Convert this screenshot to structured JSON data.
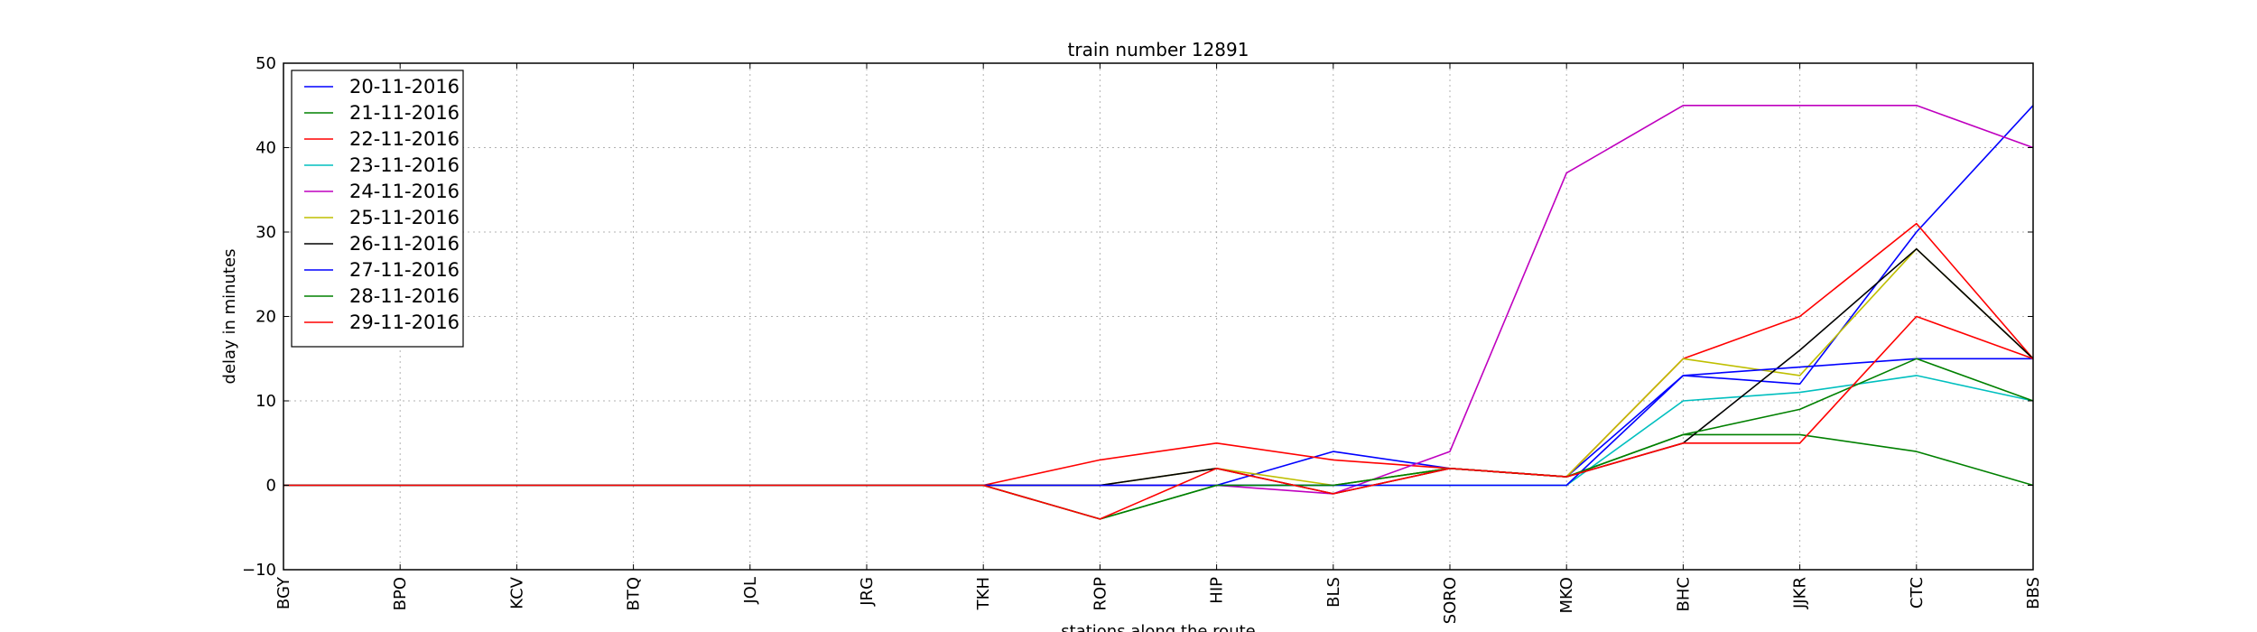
{
  "chart_data": {
    "type": "line",
    "title": "train number 12891",
    "xlabel": "stations along the route",
    "ylabel": "delay in minutes",
    "categories": [
      "BGY",
      "BPO",
      "KCV",
      "BTQ",
      "JOL",
      "JRG",
      "TKH",
      "ROP",
      "HIP",
      "BLS",
      "SORO",
      "MKO",
      "BHC",
      "JJKR",
      "CTC",
      "BBS"
    ],
    "yticks": [
      -10,
      0,
      10,
      20,
      30,
      40,
      50
    ],
    "ylim": [
      -10,
      50
    ],
    "grid": true,
    "legend_position": "top-left",
    "series": [
      {
        "name": "20-11-2016",
        "color": "#0000ff",
        "values": [
          0,
          0,
          0,
          0,
          0,
          0,
          0,
          0,
          0,
          4,
          2,
          1,
          13,
          12,
          30,
          45
        ]
      },
      {
        "name": "21-11-2016",
        "color": "#008000",
        "values": [
          0,
          0,
          0,
          0,
          0,
          0,
          0,
          -4,
          0,
          0,
          2,
          1,
          6,
          6,
          4,
          0
        ]
      },
      {
        "name": "22-11-2016",
        "color": "#ff0000",
        "values": [
          0,
          0,
          0,
          0,
          0,
          0,
          0,
          3,
          5,
          3,
          2,
          1,
          15,
          20,
          31,
          15
        ]
      },
      {
        "name": "23-11-2016",
        "color": "#00bfbf",
        "values": [
          0,
          0,
          0,
          0,
          0,
          0,
          0,
          0,
          0,
          0,
          0,
          0,
          10,
          11,
          13,
          10
        ]
      },
      {
        "name": "24-11-2016",
        "color": "#bf00bf",
        "values": [
          0,
          0,
          0,
          0,
          0,
          0,
          0,
          0,
          0,
          -1,
          4,
          37,
          45,
          45,
          45,
          40
        ]
      },
      {
        "name": "25-11-2016",
        "color": "#bfbf00",
        "values": [
          0,
          0,
          0,
          0,
          0,
          0,
          0,
          0,
          2,
          0,
          2,
          1,
          15,
          13,
          28,
          15
        ]
      },
      {
        "name": "26-11-2016",
        "color": "#000000",
        "values": [
          0,
          0,
          0,
          0,
          0,
          0,
          0,
          0,
          2,
          -1,
          2,
          1,
          5,
          16,
          28,
          15
        ]
      },
      {
        "name": "27-11-2016",
        "color": "#0000ff",
        "values": [
          0,
          0,
          0,
          0,
          0,
          0,
          0,
          0,
          0,
          0,
          0,
          0,
          13,
          14,
          15,
          15
        ]
      },
      {
        "name": "28-11-2016",
        "color": "#008000",
        "values": [
          0,
          0,
          0,
          0,
          0,
          0,
          0,
          -4,
          0,
          0,
          2,
          1,
          6,
          9,
          15,
          10
        ]
      },
      {
        "name": "29-11-2016",
        "color": "#ff0000",
        "values": [
          0,
          0,
          0,
          0,
          0,
          0,
          0,
          -4,
          2,
          -1,
          2,
          1,
          5,
          5,
          20,
          15
        ]
      }
    ]
  }
}
